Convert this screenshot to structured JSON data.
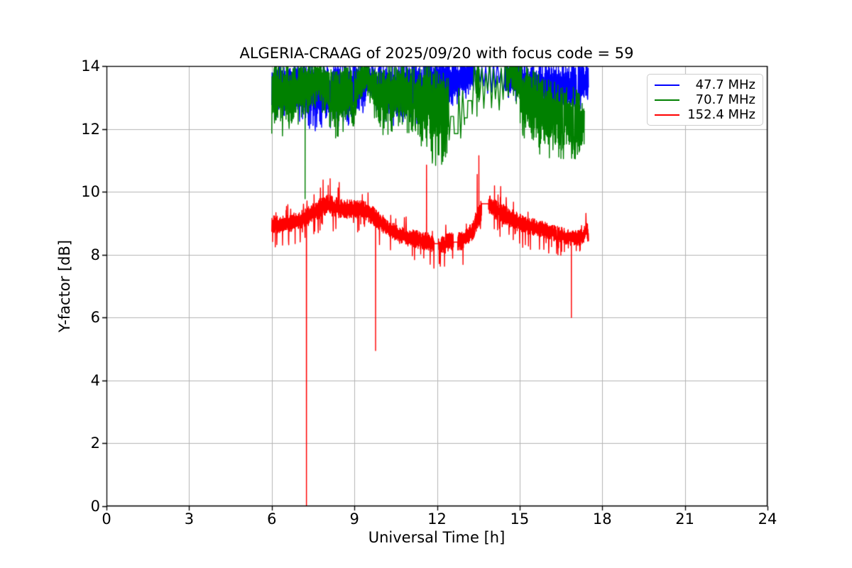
{
  "chart_data": {
    "type": "line",
    "title": "ALGERIA-CRAAG of 2025/09/20 with focus code = 59",
    "xlabel": "Universal Time [h]",
    "ylabel": "Y-factor [dB]",
    "xlim": [
      0,
      24
    ],
    "ylim": [
      0,
      14
    ],
    "xticks": [
      0,
      3,
      6,
      9,
      12,
      15,
      18,
      21,
      24
    ],
    "yticks": [
      0,
      2,
      4,
      6,
      8,
      10,
      12,
      14
    ],
    "grid": true,
    "grid_color": "#b4b4b4",
    "background_color": "#ffffff",
    "legend_position": "upper right",
    "series": [
      {
        "name": "47.7 MHz",
        "color": "#0000ff",
        "x_start": 6.0,
        "x_end": 17.5,
        "step": 0.01,
        "seed": 11,
        "clip_top": 14,
        "dip_prob": 0.07,
        "dip_min": 1.05,
        "dip_max": 1.4,
        "up_prob": 0,
        "envelope": [
          [
            6.0,
            13.25,
            0.75
          ],
          [
            6.8,
            13.35,
            0.7
          ],
          [
            7.6,
            13.15,
            0.95
          ],
          [
            8.4,
            13.2,
            0.9
          ],
          [
            9.2,
            13.35,
            0.75
          ],
          [
            9.6,
            13.6,
            0.5
          ],
          [
            10.0,
            13.35,
            0.8
          ],
          [
            10.7,
            13.25,
            0.9
          ],
          [
            11.4,
            13.3,
            0.9
          ],
          [
            12.0,
            13.5,
            0.7
          ],
          [
            12.7,
            13.6,
            0.6
          ],
          [
            13.4,
            13.75,
            0.5
          ],
          [
            14.2,
            13.75,
            0.45
          ],
          [
            14.9,
            13.6,
            0.6
          ],
          [
            15.5,
            13.45,
            0.75
          ],
          [
            16.1,
            13.3,
            0.85
          ],
          [
            16.7,
            13.35,
            0.8
          ],
          [
            17.2,
            13.45,
            0.7
          ],
          [
            17.5,
            13.6,
            0.5
          ]
        ],
        "sparse": [
          [
            13.35,
            14.45
          ]
        ],
        "flats": [],
        "spikes": []
      },
      {
        "name": "70.7 MHz",
        "color": "#008000",
        "x_start": 6.0,
        "x_end": 17.35,
        "step": 0.01,
        "seed": 23,
        "clip_top": 14,
        "dip_prob": 0.08,
        "dip_min": 1.05,
        "dip_max": 1.45,
        "up_prob": 0,
        "envelope": [
          [
            6.0,
            13.15,
            1.0
          ],
          [
            6.7,
            13.1,
            0.95
          ],
          [
            7.3,
            13.3,
            0.85
          ],
          [
            7.7,
            13.6,
            0.6
          ],
          [
            8.3,
            13.0,
            0.9
          ],
          [
            9.0,
            13.25,
            0.8
          ],
          [
            9.45,
            13.75,
            0.4
          ],
          [
            9.9,
            13.0,
            0.95
          ],
          [
            10.5,
            13.2,
            0.85
          ],
          [
            11.2,
            13.1,
            0.95
          ],
          [
            11.8,
            12.85,
            1.4
          ],
          [
            12.3,
            12.6,
            1.2
          ],
          [
            12.9,
            12.7,
            1.2
          ],
          [
            13.45,
            13.5,
            0.8
          ],
          [
            13.95,
            13.55,
            0.6
          ],
          [
            14.25,
            13.3,
            1.1
          ],
          [
            14.7,
            13.85,
            0.4
          ],
          [
            15.2,
            13.1,
            1.1
          ],
          [
            15.8,
            12.6,
            1.1
          ],
          [
            16.4,
            12.45,
            1.0
          ],
          [
            17.0,
            12.4,
            0.95
          ],
          [
            17.35,
            12.15,
            0.7
          ]
        ],
        "sparse": [
          [
            12.42,
            13.42
          ],
          [
            13.55,
            14.5
          ]
        ],
        "flats": [
          [
            12.5,
            12.6,
            12.4
          ],
          [
            12.63,
            12.76,
            11.85
          ],
          [
            13.0,
            13.1,
            12.35
          ],
          [
            13.12,
            13.26,
            12.9
          ]
        ],
        "spikes": [
          [
            7.21,
            9.78
          ]
        ]
      },
      {
        "name": "152.4 MHz",
        "color": "#ff0000",
        "x_start": 6.0,
        "x_end": 17.5,
        "step": 0.008,
        "seed": 5,
        "clip_top": 14,
        "dip_prob": 0.05,
        "dip_min": 1.3,
        "dip_max": 2.6,
        "up_prob": 0.02,
        "envelope": [
          [
            6.0,
            8.95,
            0.28
          ],
          [
            6.6,
            9.0,
            0.3
          ],
          [
            7.2,
            9.15,
            0.3
          ],
          [
            7.7,
            9.45,
            0.32
          ],
          [
            8.0,
            9.6,
            0.35
          ],
          [
            8.5,
            9.45,
            0.32
          ],
          [
            9.0,
            9.45,
            0.3
          ],
          [
            9.4,
            9.4,
            0.3
          ],
          [
            9.8,
            9.15,
            0.3
          ],
          [
            10.2,
            8.85,
            0.28
          ],
          [
            10.7,
            8.6,
            0.28
          ],
          [
            11.2,
            8.5,
            0.28
          ],
          [
            11.7,
            8.4,
            0.3
          ],
          [
            12.05,
            8.25,
            0.3
          ],
          [
            12.45,
            8.4,
            0.3
          ],
          [
            12.95,
            8.45,
            0.3
          ],
          [
            13.3,
            8.75,
            0.3
          ],
          [
            13.55,
            9.35,
            0.4
          ],
          [
            13.85,
            9.6,
            0.32
          ],
          [
            14.3,
            9.35,
            0.32
          ],
          [
            14.9,
            9.05,
            0.3
          ],
          [
            15.6,
            8.85,
            0.28
          ],
          [
            16.2,
            8.7,
            0.26
          ],
          [
            16.8,
            8.55,
            0.25
          ],
          [
            17.25,
            8.55,
            0.27
          ],
          [
            17.45,
            8.8,
            0.28
          ],
          [
            17.5,
            8.55,
            0.25
          ]
        ],
        "sparse": [],
        "flats": [
          [
            11.9,
            12.05,
            8.35
          ],
          [
            12.6,
            12.75,
            8.4
          ],
          [
            13.62,
            13.87,
            9.62
          ]
        ],
        "spikes": [
          [
            7.26,
            0.0
          ],
          [
            8.05,
            10.2
          ],
          [
            9.77,
            4.95
          ],
          [
            11.62,
            10.85
          ],
          [
            13.46,
            10.55
          ],
          [
            13.52,
            11.15
          ],
          [
            16.88,
            6.0
          ]
        ]
      }
    ]
  }
}
